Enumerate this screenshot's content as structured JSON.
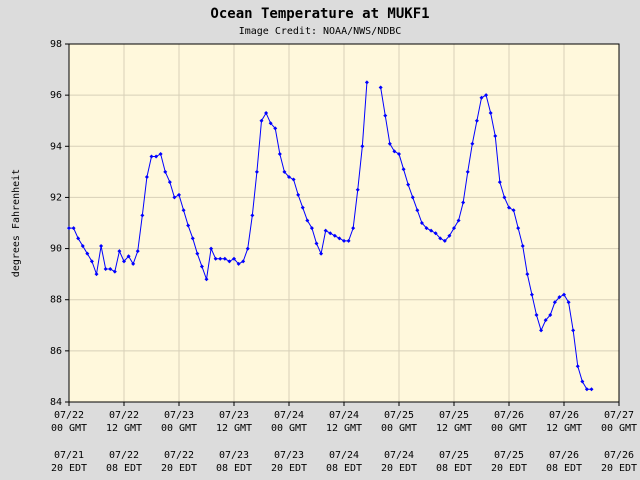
{
  "chart_data": {
    "type": "line",
    "title": "Ocean Temperature at MUKF1",
    "subtitle": "Image Credit: NOAA/NWS/NDBC",
    "y_label": "degrees Fahrenheit",
    "color": "#0000ff",
    "grid": true,
    "ylim": [
      84,
      98
    ],
    "yticks": [
      84,
      86,
      88,
      90,
      92,
      94,
      96,
      98
    ],
    "xlim": [
      0,
      120
    ],
    "xticks": [
      {
        "value": 0,
        "label": "07/22 00 GMT"
      },
      {
        "value": 12,
        "label": "07/22 12 GMT"
      },
      {
        "value": 24,
        "label": "07/23 00 GMT"
      },
      {
        "value": 36,
        "label": "07/23 12 GMT"
      },
      {
        "value": 48,
        "label": "07/24 00 GMT"
      },
      {
        "value": 60,
        "label": "07/24 12 GMT"
      },
      {
        "value": 72,
        "label": "07/25 00 GMT"
      },
      {
        "value": 84,
        "label": "07/25 12 GMT"
      },
      {
        "value": 96,
        "label": "07/26 00 GMT"
      },
      {
        "value": 108,
        "label": "07/26 12 GMT"
      },
      {
        "value": 120,
        "label": "07/27 00 GMT"
      }
    ],
    "x2ticks": [
      {
        "value": 0,
        "label": "07/21 20 EDT"
      },
      {
        "value": 12,
        "label": "07/22 08 EDT"
      },
      {
        "value": 24,
        "label": "07/22 20 EDT"
      },
      {
        "value": 36,
        "label": "07/23 08 EDT"
      },
      {
        "value": 48,
        "label": "07/23 20 EDT"
      },
      {
        "value": 60,
        "label": "07/24 08 EDT"
      },
      {
        "value": 72,
        "label": "07/24 20 EDT"
      },
      {
        "value": 84,
        "label": "07/25 08 EDT"
      },
      {
        "value": 96,
        "label": "07/25 20 EDT"
      },
      {
        "value": 108,
        "label": "07/26 08 EDT"
      },
      {
        "value": 120,
        "label": "07/26 20 EDT"
      }
    ],
    "x": [
      0,
      1,
      2,
      3,
      4,
      5,
      6,
      7,
      8,
      9,
      10,
      11,
      12,
      13,
      14,
      15,
      16,
      17,
      18,
      19,
      20,
      21,
      22,
      23,
      24,
      25,
      26,
      27,
      28,
      29,
      30,
      31,
      32,
      33,
      34,
      35,
      36,
      37,
      38,
      39,
      40,
      41,
      42,
      43,
      44,
      45,
      46,
      47,
      48,
      49,
      50,
      51,
      52,
      53,
      54,
      55,
      56,
      57,
      58,
      59,
      60,
      61,
      62,
      63,
      64,
      65,
      66,
      67,
      68,
      69,
      70,
      71,
      72,
      73,
      74,
      75,
      76,
      77,
      78,
      79,
      80,
      81,
      82,
      83,
      84,
      85,
      86,
      87,
      88,
      89,
      90,
      91,
      92,
      93,
      94,
      95,
      96,
      97,
      98,
      99,
      100,
      101,
      102,
      103,
      104,
      105,
      106,
      107,
      108,
      109,
      110,
      111,
      112,
      113,
      114
    ],
    "values": [
      90.8,
      90.8,
      90.4,
      90.1,
      89.8,
      89.5,
      89.0,
      90.1,
      89.2,
      89.2,
      89.1,
      89.9,
      89.5,
      89.7,
      89.4,
      89.9,
      91.3,
      92.8,
      93.6,
      93.6,
      93.7,
      93.0,
      92.6,
      92.0,
      92.1,
      91.5,
      90.9,
      90.4,
      89.8,
      89.3,
      88.8,
      90.0,
      89.6,
      89.6,
      89.6,
      89.5,
      89.6,
      89.4,
      89.5,
      90.0,
      91.3,
      93.0,
      95.0,
      95.3,
      94.9,
      94.7,
      93.7,
      93.0,
      92.8,
      92.7,
      92.1,
      91.6,
      91.1,
      90.8,
      90.2,
      89.8,
      90.7,
      90.6,
      90.5,
      90.4,
      90.3,
      90.3,
      90.8,
      92.3,
      94.0,
      96.5,
      null,
      null,
      96.3,
      95.2,
      94.1,
      93.8,
      93.7,
      93.1,
      92.5,
      92.0,
      91.5,
      91.0,
      90.8,
      90.7,
      90.6,
      90.4,
      90.3,
      90.5,
      90.8,
      91.1,
      91.8,
      93.0,
      94.1,
      95.0,
      95.9,
      96.0,
      95.3,
      94.4,
      92.6,
      92.0,
      91.6,
      91.5,
      90.8,
      90.1,
      89.0,
      88.2,
      87.4,
      86.8,
      87.2,
      87.4,
      87.9,
      88.1,
      88.2,
      87.9,
      86.8,
      85.4,
      84.8,
      84.5,
      84.5
    ]
  }
}
